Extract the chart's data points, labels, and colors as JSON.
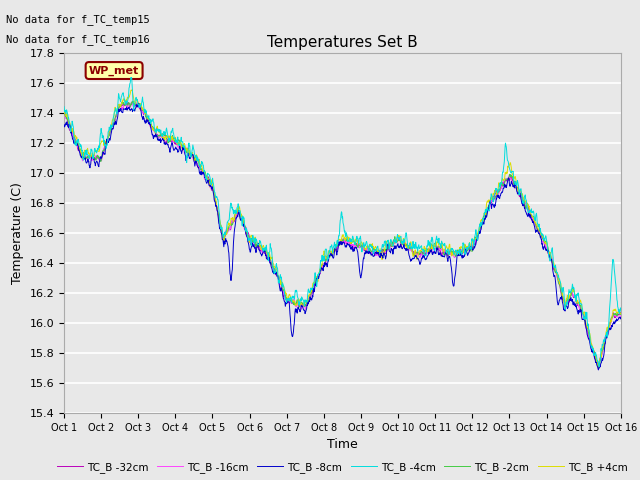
{
  "title": "Temperatures Set B",
  "xlabel": "Time",
  "ylabel": "Temperature (C)",
  "ylim": [
    15.4,
    17.8
  ],
  "annotations": [
    "No data for f_TC_temp15",
    "No data for f_TC_temp16"
  ],
  "legend_label": "WP_met",
  "legend_entries": [
    "TC_B -32cm",
    "TC_B -16cm",
    "TC_B -8cm",
    "TC_B -4cm",
    "TC_B -2cm",
    "TC_B +4cm"
  ],
  "line_colors": [
    "#bb00bb",
    "#ff44ff",
    "#0000cc",
    "#00dddd",
    "#44cc44",
    "#dddd00"
  ],
  "xtick_labels": [
    "Oct 1",
    "Oct 2",
    "Oct 3",
    "Oct 4",
    "Oct 5",
    "Oct 6",
    "Oct 7",
    "Oct 8",
    "Oct 9",
    "Oct 10",
    "Oct 11",
    "Oct 12",
    "Oct 13",
    "Oct 14",
    "Oct 15",
    "Oct 16"
  ],
  "ytick_values": [
    15.4,
    15.6,
    15.8,
    16.0,
    16.2,
    16.4,
    16.6,
    16.8,
    17.0,
    17.2,
    17.4,
    17.6,
    17.8
  ],
  "background_color": "#e8e8e8",
  "plot_bg_color": "#e8e8e8",
  "grid_color": "#ffffff",
  "n_days": 15,
  "pts_per_day": 96
}
